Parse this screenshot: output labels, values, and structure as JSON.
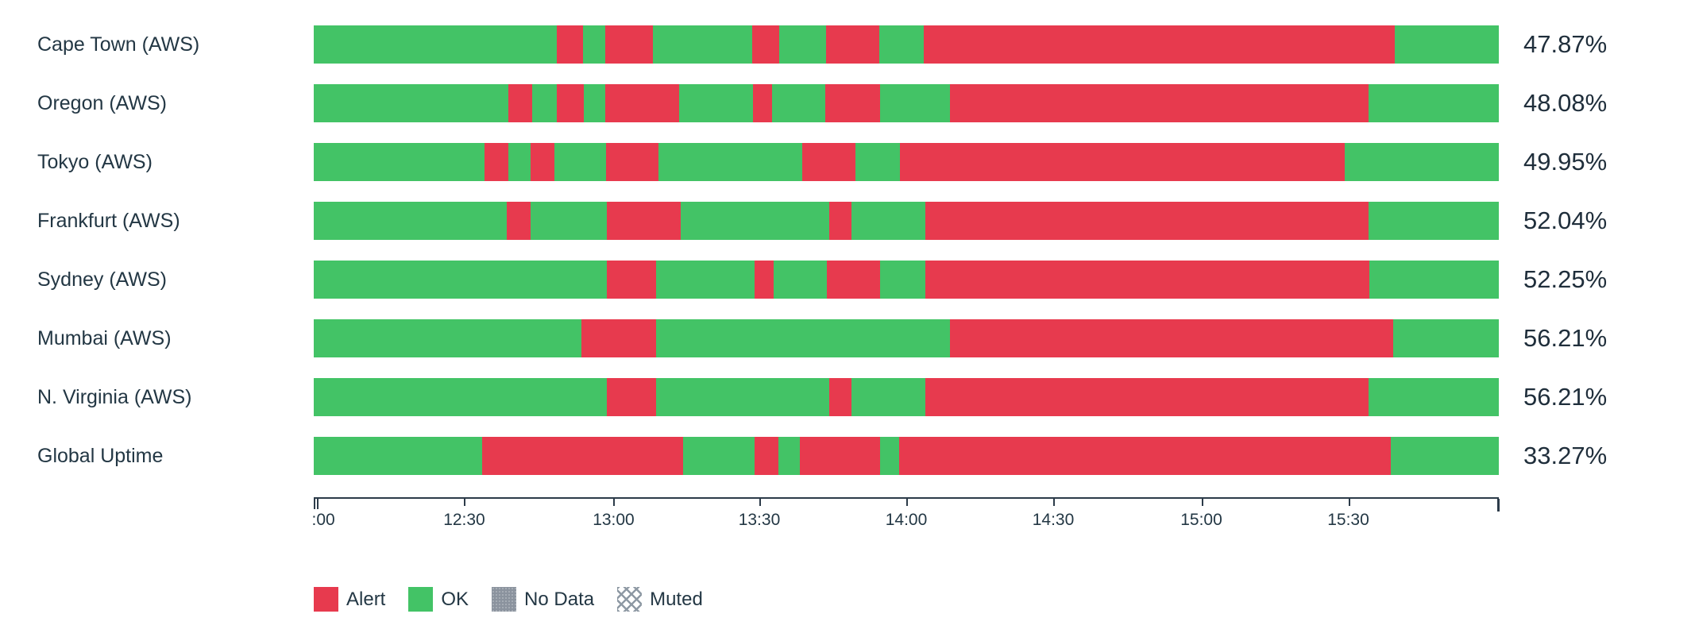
{
  "chart_data": {
    "type": "status-timeline",
    "title": "",
    "layout": {
      "legend_position": "bottom-left",
      "grid": false
    },
    "colors": {
      "ok": "#43C366",
      "alert": "#E73A4E",
      "nodata": "#8B939E",
      "muted_hatch": "#8E99A4",
      "text": "#233744",
      "axis": "#2C3B49"
    },
    "time_axis": {
      "ticks": [
        {
          "label": ":00",
          "pos_pct": 0.3,
          "align": "start"
        },
        {
          "label": "12:30",
          "pos_pct": 12.7
        },
        {
          "label": "13:00",
          "pos_pct": 25.3
        },
        {
          "label": "13:30",
          "pos_pct": 37.6
        },
        {
          "label": "14:00",
          "pos_pct": 50.0
        },
        {
          "label": "14:30",
          "pos_pct": 62.4
        },
        {
          "label": "15:00",
          "pos_pct": 74.9
        },
        {
          "label": "15:30",
          "pos_pct": 87.3
        }
      ]
    },
    "rows": [
      {
        "label": "Cape Town (AWS)",
        "value": "47.87%",
        "segments": [
          {
            "state": "ok",
            "pct": 20.5
          },
          {
            "state": "alert",
            "pct": 2.2
          },
          {
            "state": "ok",
            "pct": 1.9
          },
          {
            "state": "alert",
            "pct": 4.0
          },
          {
            "state": "ok",
            "pct": 8.4
          },
          {
            "state": "alert",
            "pct": 2.3
          },
          {
            "state": "ok",
            "pct": 3.9
          },
          {
            "state": "alert",
            "pct": 4.5
          },
          {
            "state": "ok",
            "pct": 3.8
          },
          {
            "state": "alert",
            "pct": 39.7
          },
          {
            "state": "ok",
            "pct": 8.8
          }
        ]
      },
      {
        "label": "Oregon (AWS)",
        "value": "48.08%",
        "segments": [
          {
            "state": "ok",
            "pct": 16.4
          },
          {
            "state": "alert",
            "pct": 2.0
          },
          {
            "state": "ok",
            "pct": 2.1
          },
          {
            "state": "alert",
            "pct": 2.3
          },
          {
            "state": "ok",
            "pct": 1.8
          },
          {
            "state": "alert",
            "pct": 6.2
          },
          {
            "state": "ok",
            "pct": 6.3
          },
          {
            "state": "alert",
            "pct": 1.6
          },
          {
            "state": "ok",
            "pct": 4.5
          },
          {
            "state": "alert",
            "pct": 4.6
          },
          {
            "state": "ok",
            "pct": 5.9
          },
          {
            "state": "alert",
            "pct": 35.3
          },
          {
            "state": "ok",
            "pct": 11.0
          }
        ]
      },
      {
        "label": "Tokyo (AWS)",
        "value": "49.95%",
        "segments": [
          {
            "state": "ok",
            "pct": 14.4
          },
          {
            "state": "alert",
            "pct": 2.0
          },
          {
            "state": "ok",
            "pct": 1.9
          },
          {
            "state": "alert",
            "pct": 2.0
          },
          {
            "state": "ok",
            "pct": 4.4
          },
          {
            "state": "alert",
            "pct": 4.4
          },
          {
            "state": "ok",
            "pct": 12.1
          },
          {
            "state": "alert",
            "pct": 4.5
          },
          {
            "state": "ok",
            "pct": 3.8
          },
          {
            "state": "alert",
            "pct": 37.5
          },
          {
            "state": "ok",
            "pct": 13.0
          }
        ]
      },
      {
        "label": "Frankfurt (AWS)",
        "value": "52.04%",
        "segments": [
          {
            "state": "ok",
            "pct": 16.3
          },
          {
            "state": "alert",
            "pct": 2.0
          },
          {
            "state": "ok",
            "pct": 6.4
          },
          {
            "state": "alert",
            "pct": 6.3
          },
          {
            "state": "ok",
            "pct": 12.5
          },
          {
            "state": "alert",
            "pct": 1.9
          },
          {
            "state": "ok",
            "pct": 6.2
          },
          {
            "state": "alert",
            "pct": 37.4
          },
          {
            "state": "ok",
            "pct": 11.0
          }
        ]
      },
      {
        "label": "Sydney (AWS)",
        "value": "52.25%",
        "segments": [
          {
            "state": "ok",
            "pct": 24.7
          },
          {
            "state": "alert",
            "pct": 4.2
          },
          {
            "state": "ok",
            "pct": 8.3
          },
          {
            "state": "alert",
            "pct": 1.6
          },
          {
            "state": "ok",
            "pct": 4.5
          },
          {
            "state": "alert",
            "pct": 4.5
          },
          {
            "state": "ok",
            "pct": 3.8
          },
          {
            "state": "alert",
            "pct": 37.5
          },
          {
            "state": "ok",
            "pct": 10.9
          }
        ]
      },
      {
        "label": "Mumbai (AWS)",
        "value": "56.21%",
        "segments": [
          {
            "state": "ok",
            "pct": 22.6
          },
          {
            "state": "alert",
            "pct": 6.3
          },
          {
            "state": "ok",
            "pct": 24.8
          },
          {
            "state": "alert",
            "pct": 37.4
          },
          {
            "state": "ok",
            "pct": 8.9
          }
        ]
      },
      {
        "label": "N. Virginia (AWS)",
        "value": "56.21%",
        "segments": [
          {
            "state": "ok",
            "pct": 24.7
          },
          {
            "state": "alert",
            "pct": 4.2
          },
          {
            "state": "ok",
            "pct": 14.6
          },
          {
            "state": "alert",
            "pct": 1.9
          },
          {
            "state": "ok",
            "pct": 6.2
          },
          {
            "state": "alert",
            "pct": 37.4
          },
          {
            "state": "ok",
            "pct": 11.0
          }
        ]
      },
      {
        "label": "Global Uptime",
        "value": "33.27%",
        "segments": [
          {
            "state": "ok",
            "pct": 14.2
          },
          {
            "state": "alert",
            "pct": 17.0
          },
          {
            "state": "ok",
            "pct": 6.0
          },
          {
            "state": "alert",
            "pct": 2.0
          },
          {
            "state": "ok",
            "pct": 1.8
          },
          {
            "state": "alert",
            "pct": 6.8
          },
          {
            "state": "ok",
            "pct": 1.6
          },
          {
            "state": "alert",
            "pct": 41.5
          },
          {
            "state": "ok",
            "pct": 9.1
          }
        ]
      }
    ],
    "legend": [
      {
        "label": "Alert",
        "swatch": "alert"
      },
      {
        "label": "OK",
        "swatch": "ok"
      },
      {
        "label": "No Data",
        "swatch": "nodata"
      },
      {
        "label": "Muted",
        "swatch": "muted"
      }
    ]
  }
}
